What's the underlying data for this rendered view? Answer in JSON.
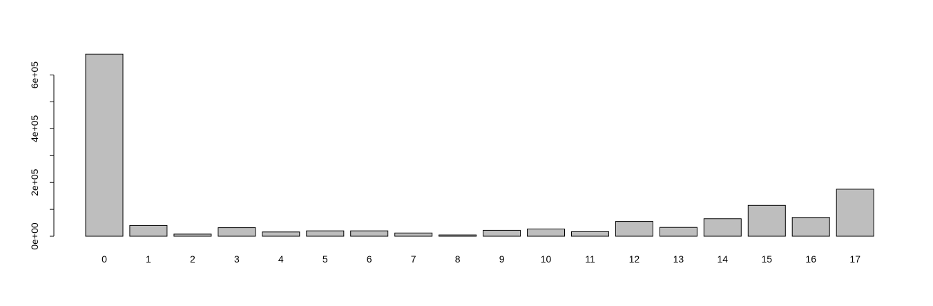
{
  "chart_data": {
    "type": "bar",
    "categories": [
      "0",
      "1",
      "2",
      "3",
      "4",
      "5",
      "6",
      "7",
      "8",
      "9",
      "10",
      "11",
      "12",
      "13",
      "14",
      "15",
      "16",
      "17"
    ],
    "values": [
      678000,
      40000,
      8000,
      32000,
      16000,
      20000,
      20000,
      12000,
      5000,
      22000,
      27000,
      17000,
      55000,
      33000,
      65000,
      115000,
      70000,
      175000
    ],
    "title": "",
    "xlabel": "",
    "ylabel": "",
    "ylim": [
      0,
      700000
    ],
    "yticks": [
      0,
      200000,
      400000,
      600000
    ],
    "ytick_labels": [
      "0e+00",
      "2e+05",
      "4e+05",
      "6e+05"
    ],
    "yminor_ticks": [
      100000,
      300000,
      500000
    ],
    "grid": false,
    "colors": {
      "bar_fill": "#bebebe",
      "bar_stroke": "#000000",
      "axis": "#000000"
    }
  }
}
